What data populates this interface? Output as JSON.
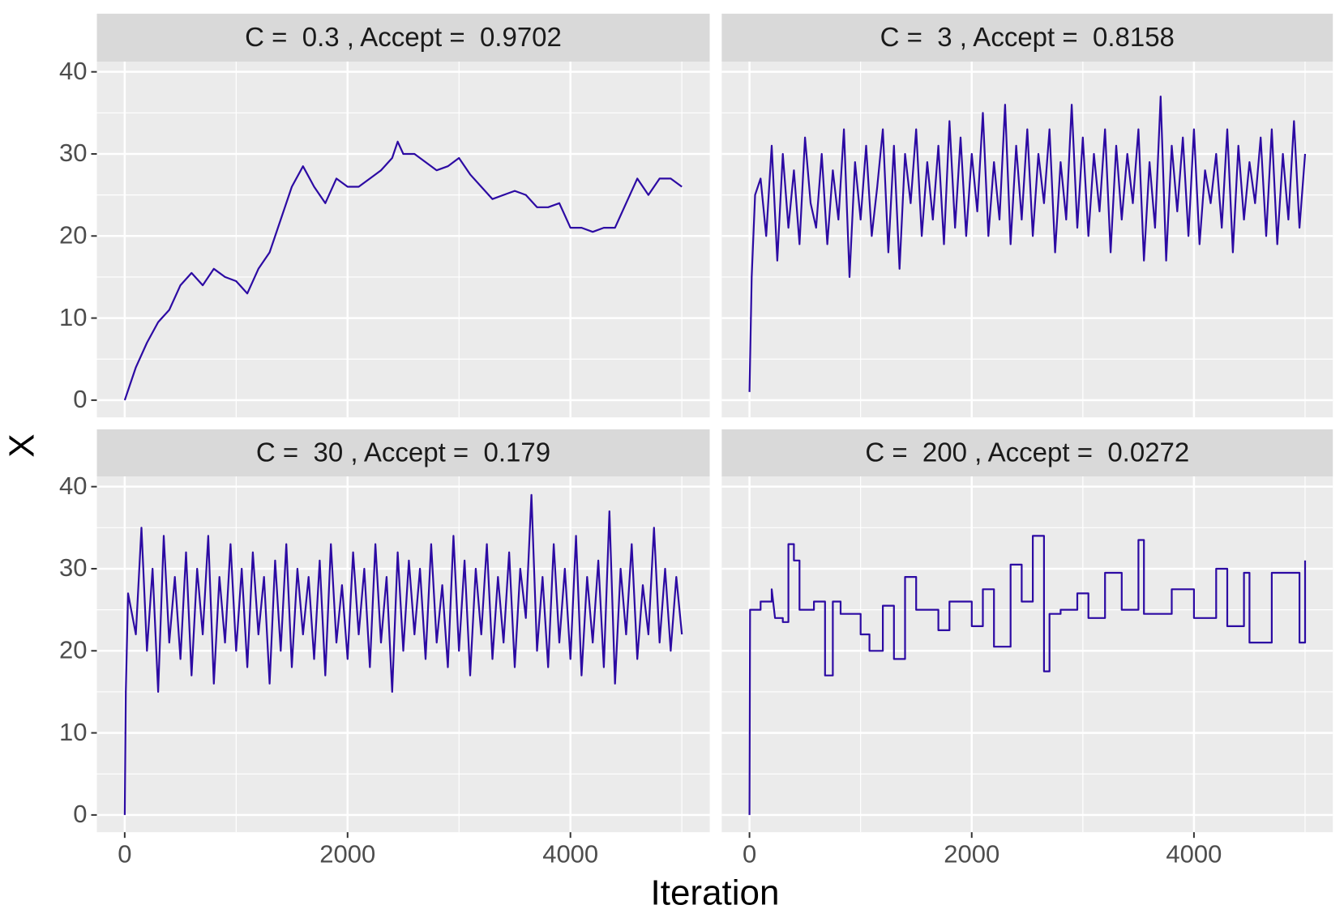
{
  "axes": {
    "x_label": "Iteration",
    "y_label": "X"
  },
  "chart_data": [
    {
      "type": "line",
      "title": "C =  0.3 , Accept =  0.9702",
      "color": "#2c0aa3",
      "x": [
        0,
        100,
        200,
        300,
        400,
        500,
        600,
        700,
        800,
        900,
        1000,
        1100,
        1200,
        1300,
        1400,
        1500,
        1600,
        1700,
        1800,
        1900,
        2000,
        2100,
        2200,
        2300,
        2400,
        2450,
        2500,
        2600,
        2700,
        2800,
        2900,
        3000,
        3100,
        3200,
        3300,
        3400,
        3500,
        3600,
        3700,
        3800,
        3900,
        4000,
        4100,
        4200,
        4300,
        4400,
        4500,
        4600,
        4700,
        4800,
        4900,
        5000
      ],
      "values": [
        0,
        4,
        7,
        9.5,
        11,
        14,
        15.5,
        14,
        16,
        15,
        14.5,
        13,
        16,
        18,
        22,
        26,
        28.5,
        26,
        24,
        27,
        26,
        26,
        27,
        28,
        29.5,
        31.5,
        30,
        30,
        29,
        28,
        28.5,
        29.5,
        27.5,
        26,
        24.5,
        25,
        25.5,
        25,
        23.5,
        23.5,
        24,
        21,
        21,
        20.5,
        21,
        21,
        24,
        27,
        25,
        27,
        27,
        26
      ],
      "xlim": [
        -250,
        5250
      ],
      "xticks": [
        0,
        2000,
        4000
      ],
      "xminor": [
        1000,
        3000,
        5000
      ],
      "ylim": [
        -2.1,
        41.25
      ],
      "yticks": [
        0,
        10,
        20,
        30,
        40
      ],
      "yminor": [
        5,
        15,
        25,
        35
      ]
    },
    {
      "type": "line",
      "title": "C =  3 , Accept =  0.8158",
      "color": "#2c0aa3",
      "x": [
        0,
        20,
        50,
        100,
        150,
        200,
        250,
        300,
        350,
        400,
        450,
        500,
        550,
        600,
        650,
        700,
        750,
        800,
        850,
        900,
        950,
        1000,
        1050,
        1100,
        1150,
        1200,
        1250,
        1300,
        1350,
        1400,
        1450,
        1500,
        1550,
        1600,
        1650,
        1700,
        1750,
        1800,
        1850,
        1900,
        1950,
        2000,
        2050,
        2100,
        2150,
        2200,
        2250,
        2300,
        2350,
        2400,
        2450,
        2500,
        2550,
        2600,
        2650,
        2700,
        2750,
        2800,
        2850,
        2900,
        2950,
        3000,
        3050,
        3100,
        3150,
        3200,
        3250,
        3300,
        3350,
        3400,
        3450,
        3500,
        3550,
        3600,
        3650,
        3700,
        3750,
        3800,
        3850,
        3900,
        3950,
        4000,
        4050,
        4100,
        4150,
        4200,
        4250,
        4300,
        4350,
        4400,
        4450,
        4500,
        4550,
        4600,
        4650,
        4700,
        4750,
        4800,
        4850,
        4900,
        4950,
        5000
      ],
      "values": [
        1,
        15,
        25,
        27,
        20,
        31,
        17,
        30,
        21,
        28,
        19,
        32,
        24,
        21,
        30,
        19,
        28,
        22,
        33,
        15,
        29,
        22,
        31,
        20,
        26,
        33,
        18,
        31,
        16,
        30,
        24,
        33,
        20,
        29,
        22,
        31,
        19,
        34,
        21,
        32,
        20,
        30,
        23,
        35,
        20,
        29,
        22,
        36,
        19,
        31,
        22,
        33,
        20,
        30,
        24,
        33,
        18,
        29,
        22,
        36,
        21,
        32,
        20,
        30,
        23,
        33,
        18,
        31,
        22,
        30,
        24,
        33,
        17,
        29,
        21,
        37,
        17,
        31,
        23,
        32,
        20,
        33,
        19,
        28,
        24,
        30,
        21,
        33,
        18,
        31,
        22,
        29,
        24,
        32,
        20,
        33,
        19,
        30,
        22,
        34,
        21,
        30
      ],
      "xlim": [
        -250,
        5250
      ],
      "xticks": [
        0,
        2000,
        4000
      ],
      "xminor": [
        1000,
        3000,
        5000
      ],
      "ylim": [
        -2.1,
        41.25
      ],
      "yticks": [
        0,
        10,
        20,
        30,
        40
      ],
      "yminor": [
        5,
        15,
        25,
        35
      ]
    },
    {
      "type": "line",
      "title": "C =  30 , Accept =  0.179",
      "color": "#2c0aa3",
      "x": [
        0,
        10,
        30,
        100,
        150,
        200,
        250,
        300,
        350,
        400,
        450,
        500,
        550,
        600,
        650,
        700,
        750,
        800,
        850,
        900,
        950,
        1000,
        1050,
        1100,
        1150,
        1200,
        1250,
        1300,
        1350,
        1400,
        1450,
        1500,
        1550,
        1600,
        1650,
        1700,
        1750,
        1800,
        1850,
        1900,
        1950,
        2000,
        2050,
        2100,
        2150,
        2200,
        2250,
        2300,
        2350,
        2400,
        2450,
        2500,
        2550,
        2600,
        2650,
        2700,
        2750,
        2800,
        2850,
        2900,
        2950,
        3000,
        3050,
        3100,
        3150,
        3200,
        3250,
        3300,
        3350,
        3400,
        3450,
        3500,
        3550,
        3600,
        3650,
        3700,
        3750,
        3800,
        3850,
        3900,
        3950,
        4000,
        4050,
        4100,
        4150,
        4200,
        4250,
        4300,
        4350,
        4400,
        4450,
        4500,
        4550,
        4600,
        4650,
        4700,
        4750,
        4800,
        4850,
        4900,
        4950,
        5000
      ],
      "values": [
        0,
        15,
        27,
        22,
        35,
        20,
        30,
        15,
        34,
        21,
        29,
        19,
        32,
        17,
        30,
        22,
        34,
        16,
        29,
        21,
        33,
        20,
        30,
        18,
        32,
        22,
        29,
        16,
        31,
        20,
        33,
        18,
        30,
        22,
        29,
        19,
        31,
        17,
        33,
        21,
        28,
        19,
        32,
        22,
        30,
        18,
        33,
        21,
        29,
        15,
        32,
        20,
        31,
        22,
        30,
        19,
        33,
        21,
        28,
        18,
        34,
        20,
        31,
        17,
        30,
        22,
        33,
        19,
        29,
        21,
        32,
        18,
        30,
        24,
        39,
        20,
        29,
        18,
        33,
        21,
        30,
        19,
        34,
        17,
        29,
        21,
        31,
        18,
        37,
        16,
        30,
        22,
        33,
        19,
        28,
        22,
        35,
        21,
        30,
        20,
        29,
        22
      ],
      "xlim": [
        -250,
        5250
      ],
      "xticks": [
        0,
        2000,
        4000
      ],
      "xminor": [
        1000,
        3000,
        5000
      ],
      "ylim": [
        -2.1,
        41.25
      ],
      "yticks": [
        0,
        10,
        20,
        30,
        40
      ],
      "yminor": [
        5,
        15,
        25,
        35
      ]
    },
    {
      "type": "line",
      "title": "C =  200 , Accept =  0.0272",
      "color": "#2c0aa3",
      "x": [
        0,
        5,
        100,
        100,
        200,
        200,
        230,
        300,
        300,
        350,
        350,
        400,
        400,
        450,
        450,
        580,
        580,
        680,
        680,
        750,
        750,
        820,
        820,
        1000,
        1000,
        1080,
        1080,
        1200,
        1200,
        1300,
        1300,
        1400,
        1400,
        1500,
        1500,
        1700,
        1700,
        1800,
        1800,
        2000,
        2000,
        2100,
        2100,
        2200,
        2200,
        2350,
        2350,
        2450,
        2450,
        2550,
        2550,
        2650,
        2650,
        2700,
        2700,
        2800,
        2800,
        2950,
        2950,
        3050,
        3050,
        3200,
        3200,
        3350,
        3350,
        3500,
        3500,
        3550,
        3550,
        3800,
        3800,
        4000,
        4000,
        4200,
        4200,
        4300,
        4300,
        4450,
        4450,
        4500,
        4500,
        4700,
        4700,
        4950,
        4950,
        5000,
        5000
      ],
      "values": [
        0,
        25,
        25,
        26,
        26,
        27.5,
        24,
        24,
        23.5,
        23.5,
        33,
        33,
        31,
        31,
        25,
        25,
        26,
        26,
        17,
        17,
        26,
        26,
        24.5,
        24.5,
        22,
        22,
        20,
        20,
        25.5,
        25.5,
        19,
        19,
        29,
        29,
        25,
        25,
        22.5,
        22.5,
        26,
        26,
        23,
        23,
        27.5,
        27.5,
        20.5,
        20.5,
        30.5,
        30.5,
        26,
        26,
        34,
        34,
        17.5,
        17.5,
        24.5,
        24.5,
        25,
        25,
        27,
        27,
        24,
        24,
        29.5,
        29.5,
        25,
        25,
        33.5,
        33.5,
        24.5,
        24.5,
        27.5,
        27.5,
        24,
        24,
        30,
        30,
        23,
        23,
        29.5,
        29.5,
        21,
        21,
        29.5,
        29.5,
        21,
        21,
        31
      ],
      "xlim": [
        -250,
        5250
      ],
      "xticks": [
        0,
        2000,
        4000
      ],
      "xminor": [
        1000,
        3000,
        5000
      ],
      "ylim": [
        -2.1,
        41.25
      ],
      "yticks": [
        0,
        10,
        20,
        30,
        40
      ],
      "yminor": [
        5,
        15,
        25,
        35
      ]
    }
  ]
}
